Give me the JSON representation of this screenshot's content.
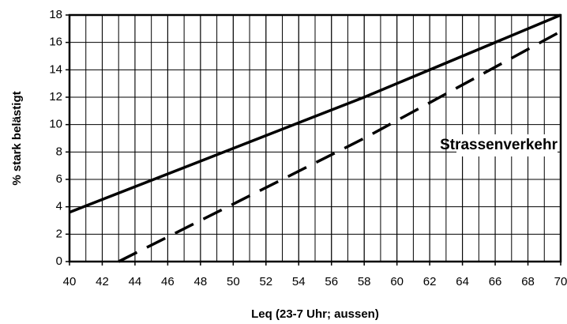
{
  "chart_data": {
    "type": "line",
    "xlabel": "Leq (23-7 Uhr; aussen)",
    "ylabel": "% stark belästigt",
    "annotation": "Strassenverkehr",
    "xlim": [
      40,
      70
    ],
    "ylim": [
      0,
      18
    ],
    "xticks": [
      40,
      42,
      44,
      46,
      48,
      50,
      52,
      54,
      56,
      58,
      60,
      62,
      64,
      66,
      68,
      70
    ],
    "yticks": [
      0,
      2,
      4,
      6,
      8,
      10,
      12,
      14,
      16,
      18
    ],
    "grid": true,
    "x_grid_step": 1,
    "series": [
      {
        "color": "#000000",
        "dashed": false,
        "x": [
          40,
          58,
          70
        ],
        "values": [
          3.6,
          12,
          18
        ]
      },
      {
        "color": "#000000",
        "dashed": true,
        "x": [
          43,
          58,
          70
        ],
        "values": [
          0,
          9,
          16.8
        ]
      }
    ]
  }
}
